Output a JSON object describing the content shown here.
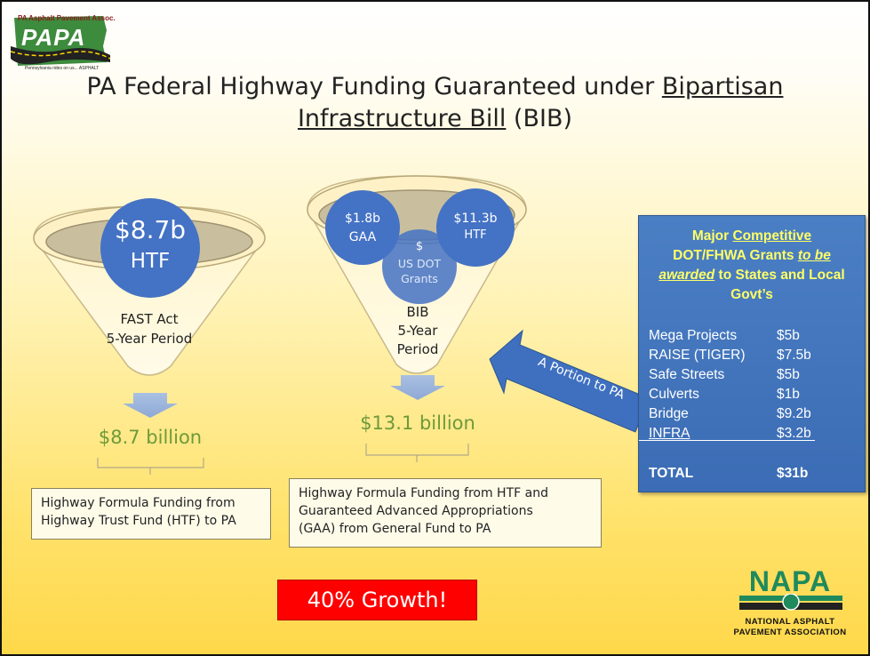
{
  "logo_papa": {
    "org_text": "PA Asphalt Pavement Assoc.",
    "mark": "PAPA",
    "tagline": "Pennsylvania rides on us... ASPHALT"
  },
  "title": {
    "line1_plain": "PA Federal Highway Funding Guaranteed under ",
    "line1_underlined": "Bipartisan",
    "line2_underlined": "Infrastructure Bill",
    "line2_plain": " (BIB)"
  },
  "funnel_fast": {
    "circle_amount": "$8.7b",
    "circle_label": "HTF",
    "period_line1": "FAST Act",
    "period_line2": "5-Year Period",
    "total": "$8.7 billion",
    "note_line1": "Highway Formula Funding from",
    "note_line2": "Highway Trust Fund (HTF) to PA"
  },
  "funnel_bib": {
    "circle_gaa_amount": "$1.8b",
    "circle_gaa_label": "GAA",
    "circle_dot_amount": "$",
    "circle_dot_label1": "US DOT",
    "circle_dot_label2": "Grants",
    "circle_htf_amount": "$11.3b",
    "circle_htf_label": "HTF",
    "period_line1": "BIB",
    "period_line2": "5-Year",
    "period_line3": "Period",
    "total": "$13.1 billion",
    "note_line1": "Highway Formula Funding from HTF and",
    "note_line2": "Guaranteed Advanced Appropriations",
    "note_line3": "(GAA) from General Fund to PA"
  },
  "arrow_label": "A Portion to PA",
  "grants": {
    "head_word_major": "Major ",
    "head_word_competitive": "Competitive",
    "head_line2_plain": "DOT/FHWA Grants ",
    "head_line2_emph": "to be",
    "head_line3_emph": "awarded",
    "head_line3_plain": " to States and Local",
    "head_line4": "Govt’s",
    "rows": [
      {
        "name": "Mega Projects",
        "amount": "$5b"
      },
      {
        "name": "RAISE (TIGER)",
        "amount": "$7.5b"
      },
      {
        "name": "Safe Streets",
        "amount": "$5b"
      },
      {
        "name": "Culverts",
        "amount": "$1b"
      },
      {
        "name": "Bridge",
        "amount": "$9.2b"
      },
      {
        "name": "INFRA",
        "amount": "$3.2b"
      }
    ],
    "total_label": "TOTAL",
    "total_amount": "$31b"
  },
  "growth": "40% Growth!",
  "logo_napa": {
    "mark": "NAPA",
    "line1": "NATIONAL ASPHALT",
    "line2": "PAVEMENT ASSOCIATION"
  },
  "colors": {
    "circle_blue": "#4472c4",
    "total_green": "#6e9a3a",
    "grants_blue": "#3b6cb5",
    "grants_head": "#ffff66",
    "growth_red": "#ff0000",
    "napa_green": "#1f8a5c"
  }
}
